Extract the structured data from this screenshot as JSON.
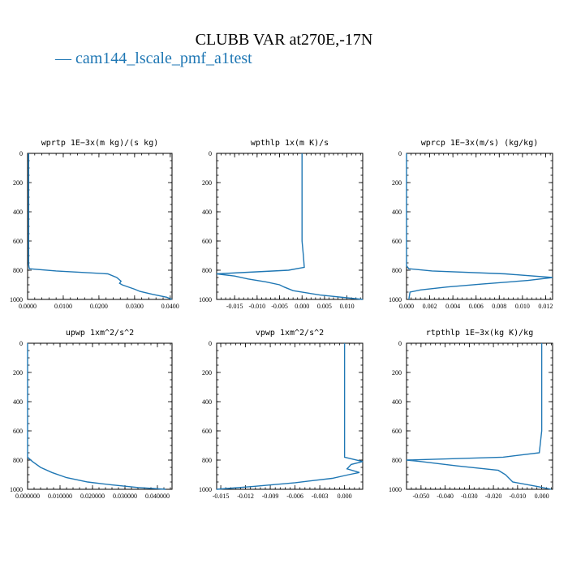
{
  "figure": {
    "title": "CLUBB VAR at270E,-17N",
    "legend": [
      {
        "label": "— cam144_lscale_pmf_a1test",
        "color": "#1f77b4"
      }
    ]
  },
  "chart_data": [
    {
      "type": "line",
      "title": "wprtp  1E−3x(m kg)/(s kg)",
      "xlim": [
        0,
        0.0405
      ],
      "ylim": [
        1000,
        0
      ],
      "y_inverted": true,
      "xticks": [
        0,
        0.01,
        0.02,
        0.03,
        0.04
      ],
      "xtick_labels": [
        "0.0000",
        "0.0100",
        "0.0200",
        "0.0300",
        "0.0400"
      ],
      "yticks": [
        0,
        200,
        400,
        600,
        800,
        1000
      ],
      "ytick_labels": [
        "0",
        "200",
        "400",
        "600",
        "800",
        "1000"
      ],
      "series": [
        {
          "color": "#1f77b4",
          "x": [
            0.0003,
            0.0003,
            0.0003,
            0.0003,
            0.0003,
            0.0003,
            0.0004,
            0.0005,
            0.008,
            0.0225,
            0.025,
            0.0262,
            0.0258,
            0.0265,
            0.03,
            0.0315,
            0.035,
            0.039,
            0.0405
          ],
          "y": [
            0,
            200,
            400,
            600,
            700,
            760,
            780,
            790,
            805,
            825,
            850,
            875,
            890,
            900,
            930,
            945,
            965,
            985,
            1000
          ]
        }
      ]
    },
    {
      "type": "line",
      "title": "wpthlp  1x(m K)/s",
      "xlim": [
        -0.019,
        0.0135
      ],
      "ylim": [
        1000,
        0
      ],
      "y_inverted": true,
      "xticks": [
        -0.015,
        -0.01,
        -0.005,
        0,
        0.005,
        0.01
      ],
      "xtick_labels": [
        "-0.015",
        "-0.010",
        "-0.005",
        "0.000",
        "0.005",
        "0.010"
      ],
      "yticks": [
        0,
        200,
        400,
        600,
        800,
        1000
      ],
      "ytick_labels": [
        "0",
        "200",
        "400",
        "600",
        "800",
        "1000"
      ],
      "series": [
        {
          "color": "#1f77b4",
          "x": [
            0.0,
            0.0,
            0.0,
            0.0,
            0.0003,
            0.0005,
            -0.003,
            -0.019,
            -0.015,
            -0.012,
            -0.008,
            -0.005,
            -0.004,
            -0.002,
            0.004,
            0.0135
          ],
          "y": [
            0,
            200,
            400,
            600,
            700,
            780,
            800,
            825,
            840,
            860,
            880,
            900,
            915,
            940,
            970,
            1000
          ]
        }
      ]
    },
    {
      "type": "line",
      "title": "wprcp  1E−3x(m/s) (kg/kg)",
      "xlim": [
        0,
        0.0126
      ],
      "ylim": [
        1000,
        0
      ],
      "y_inverted": true,
      "xticks": [
        0,
        0.002,
        0.004,
        0.006,
        0.008,
        0.01,
        0.012
      ],
      "xtick_labels": [
        "0.000",
        "0.002",
        "0.004",
        "0.006",
        "0.008",
        "0.010",
        "0.012"
      ],
      "yticks": [
        0,
        200,
        400,
        600,
        800,
        1000
      ],
      "ytick_labels": [
        "0",
        "200",
        "400",
        "600",
        "800",
        "1000"
      ],
      "series": [
        {
          "color": "#1f77b4",
          "x": [
            0,
            0,
            0,
            0,
            0,
            0.0002,
            0.0022,
            0.0085,
            0.0126,
            0.0105,
            0.0065,
            0.0035,
            0.0012,
            0.0003,
            0.0002
          ],
          "y": [
            0,
            200,
            400,
            600,
            770,
            790,
            805,
            825,
            850,
            870,
            895,
            915,
            935,
            950,
            1000
          ]
        }
      ]
    },
    {
      "type": "line",
      "title": "upwp  1xm^2/s^2",
      "xlim": [
        0,
        0.0445
      ],
      "ylim": [
        1000,
        0
      ],
      "y_inverted": true,
      "xticks": [
        0,
        0.01,
        0.02,
        0.03,
        0.04
      ],
      "xtick_labels": [
        "0.000000",
        "0.010000",
        "0.020000",
        "0.030000",
        "0.040000"
      ],
      "yticks": [
        0,
        200,
        400,
        600,
        800,
        1000
      ],
      "ytick_labels": [
        "0",
        "200",
        "400",
        "600",
        "800",
        "1000"
      ],
      "series": [
        {
          "color": "#1f77b4",
          "x": [
            0,
            0,
            0,
            0,
            0,
            0.0015,
            0.004,
            0.0075,
            0.012,
            0.0185,
            0.026,
            0.034,
            0.0425
          ],
          "y": [
            0,
            200,
            400,
            600,
            780,
            810,
            850,
            885,
            920,
            950,
            970,
            988,
            1000
          ]
        }
      ]
    },
    {
      "type": "line",
      "title": "vpwp  1xm^2/s^2",
      "xlim": [
        -0.0155,
        0.0022
      ],
      "ylim": [
        1000,
        0
      ],
      "y_inverted": true,
      "xticks": [
        -0.015,
        -0.012,
        -0.009,
        -0.006,
        -0.003,
        0
      ],
      "xtick_labels": [
        "-0.015",
        "-0.012",
        "-0.009",
        "-0.006",
        "-0.003",
        "0.000"
      ],
      "yticks": [
        0,
        200,
        400,
        600,
        800,
        1000
      ],
      "ytick_labels": [
        "0",
        "200",
        "400",
        "600",
        "800",
        "1000"
      ],
      "series": [
        {
          "color": "#1f77b4",
          "x": [
            0.0,
            0.0,
            0.0,
            0.0,
            0.0,
            0.0022,
            0.0008,
            0.0003,
            0.0018,
            0.0005,
            -0.0015,
            -0.006,
            -0.011,
            -0.0155
          ],
          "y": [
            0,
            200,
            400,
            600,
            780,
            810,
            830,
            860,
            885,
            900,
            925,
            955,
            980,
            1000
          ]
        }
      ]
    },
    {
      "type": "line",
      "title": "rtpthlp  1E−3x(kg K)/kg",
      "xlim": [
        -0.056,
        0.0045
      ],
      "ylim": [
        1000,
        0
      ],
      "y_inverted": true,
      "xticks": [
        -0.05,
        -0.04,
        -0.03,
        -0.02,
        -0.01,
        0
      ],
      "xtick_labels": [
        "-0.050",
        "-0.040",
        "-0.030",
        "-0.020",
        "-0.010",
        "0.000"
      ],
      "yticks": [
        0,
        200,
        400,
        600,
        800,
        1000
      ],
      "ytick_labels": [
        "0",
        "200",
        "400",
        "600",
        "800",
        "1000"
      ],
      "series": [
        {
          "color": "#1f77b4",
          "x": [
            0.0,
            0.0,
            0.0,
            0.0,
            -0.001,
            -0.016,
            -0.056,
            -0.05,
            -0.035,
            -0.018,
            -0.015,
            -0.012,
            -0.002,
            0.004
          ],
          "y": [
            0,
            200,
            400,
            600,
            750,
            780,
            800,
            810,
            840,
            870,
            900,
            950,
            980,
            1000
          ]
        }
      ]
    }
  ]
}
